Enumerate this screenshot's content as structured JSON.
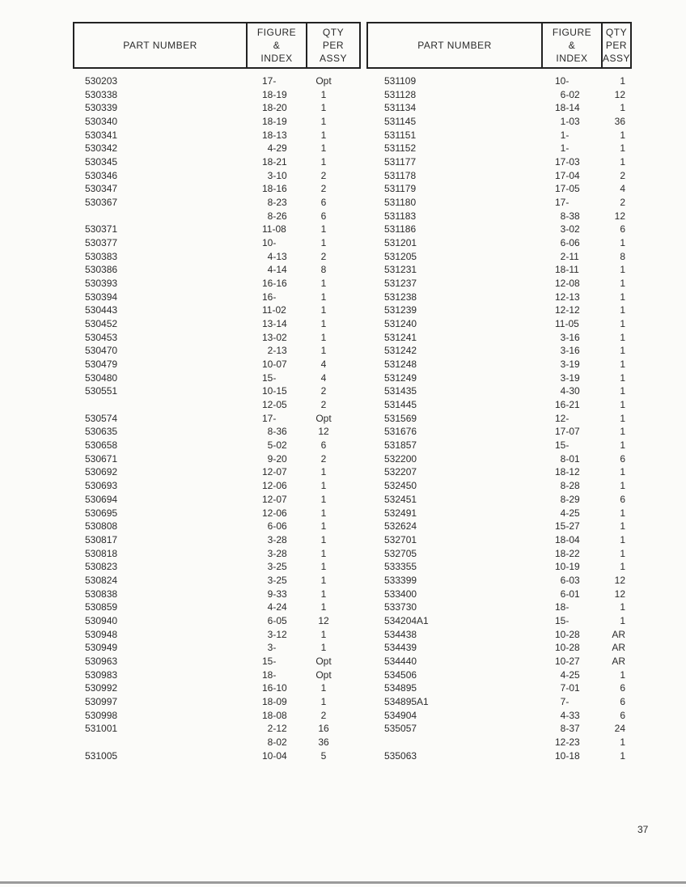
{
  "header": {
    "part_number": "PART NUMBER",
    "figure": [
      "FIGURE",
      "&",
      "INDEX"
    ],
    "qty": [
      "QTY",
      "PER",
      "ASSY"
    ]
  },
  "left_rows": [
    [
      "530203",
      "17-",
      "Opt"
    ],
    [
      "530338",
      "18-19",
      "1"
    ],
    [
      "530339",
      "18-20",
      "1"
    ],
    [
      "530340",
      "18-19",
      "1"
    ],
    [
      "530341",
      "18-13",
      "1"
    ],
    [
      "530342",
      "4-29",
      "1"
    ],
    [
      "530345",
      "18-21",
      "1"
    ],
    [
      "530346",
      "3-10",
      "2"
    ],
    [
      "530347",
      "18-16",
      "2"
    ],
    [
      "530367",
      "8-23",
      "6"
    ],
    [
      "",
      "8-26",
      "6"
    ],
    [
      "530371",
      "11-08",
      "1"
    ],
    [
      "530377",
      "10-",
      "1"
    ],
    [
      "530383",
      "4-13",
      "2"
    ],
    [
      "530386",
      "4-14",
      "8"
    ],
    [
      "530393",
      "16-16",
      "1"
    ],
    [
      "530394",
      "16-",
      "1"
    ],
    [
      "530443",
      "11-02",
      "1"
    ],
    [
      "530452",
      "13-14",
      "1"
    ],
    [
      "530453",
      "13-02",
      "1"
    ],
    [
      "530470",
      "2-13",
      "1"
    ],
    [
      "530479",
      "10-07",
      "4"
    ],
    [
      "530480",
      "15-",
      "4"
    ],
    [
      "530551",
      "10-15",
      "2"
    ],
    [
      "",
      "12-05",
      "2"
    ],
    [
      "530574",
      "17-",
      "Opt"
    ],
    [
      "530635",
      "8-36",
      "12"
    ],
    [
      "530658",
      "5-02",
      "6"
    ],
    [
      "530671",
      "9-20",
      "2"
    ],
    [
      "530692",
      "12-07",
      "1"
    ],
    [
      "530693",
      "12-06",
      "1"
    ],
    [
      "530694",
      "12-07",
      "1"
    ],
    [
      "530695",
      "12-06",
      "1"
    ],
    [
      "530808",
      "6-06",
      "1"
    ],
    [
      "530817",
      "3-28",
      "1"
    ],
    [
      "530818",
      "3-28",
      "1"
    ],
    [
      "530823",
      "3-25",
      "1"
    ],
    [
      "530824",
      "3-25",
      "1"
    ],
    [
      "530838",
      "9-33",
      "1"
    ],
    [
      "530859",
      "4-24",
      "1"
    ],
    [
      "530940",
      "6-05",
      "12"
    ],
    [
      "530948",
      "3-12",
      "1"
    ],
    [
      "530949",
      "3-",
      "1"
    ],
    [
      "530963",
      "15-",
      "Opt"
    ],
    [
      "530983",
      "18-",
      "Opt"
    ],
    [
      "530992",
      "16-10",
      "1"
    ],
    [
      "530997",
      "18-09",
      "1"
    ],
    [
      "530998",
      "18-08",
      "2"
    ],
    [
      "531001",
      "2-12",
      "16"
    ],
    [
      "",
      "8-02",
      "36"
    ],
    [
      "531005",
      "10-04",
      "5"
    ]
  ],
  "right_rows": [
    [
      "531109",
      "10-",
      "1"
    ],
    [
      "531128",
      "6-02",
      "12"
    ],
    [
      "531134",
      "18-14",
      "1"
    ],
    [
      "531145",
      "1-03",
      "36"
    ],
    [
      "531151",
      "1-",
      "1"
    ],
    [
      "531152",
      "1-",
      "1"
    ],
    [
      "531177",
      "17-03",
      "1"
    ],
    [
      "531178",
      "17-04",
      "2"
    ],
    [
      "531179",
      "17-05",
      "4"
    ],
    [
      "531180",
      "17-",
      "2"
    ],
    [
      "531183",
      "8-38",
      "12"
    ],
    [
      "531186",
      "3-02",
      "6"
    ],
    [
      "531201",
      "6-06",
      "1"
    ],
    [
      "531205",
      "2-11",
      "8"
    ],
    [
      "531231",
      "18-11",
      "1"
    ],
    [
      "531237",
      "12-08",
      "1"
    ],
    [
      "531238",
      "12-13",
      "1"
    ],
    [
      "531239",
      "12-12",
      "1"
    ],
    [
      "531240",
      "11-05",
      "1"
    ],
    [
      "531241",
      "3-16",
      "1"
    ],
    [
      "531242",
      "3-16",
      "1"
    ],
    [
      "531248",
      "3-19",
      "1"
    ],
    [
      "531249",
      "3-19",
      "1"
    ],
    [
      "531435",
      "4-30",
      "1"
    ],
    [
      "531445",
      "16-21",
      "1"
    ],
    [
      "531569",
      "12-",
      "1"
    ],
    [
      "531676",
      "17-07",
      "1"
    ],
    [
      "531857",
      "15-",
      "1"
    ],
    [
      "532200",
      "8-01",
      "6"
    ],
    [
      "532207",
      "18-12",
      "1"
    ],
    [
      "532450",
      "8-28",
      "1"
    ],
    [
      "532451",
      "8-29",
      "6"
    ],
    [
      "532491",
      "4-25",
      "1"
    ],
    [
      "532624",
      "15-27",
      "1"
    ],
    [
      "532701",
      "18-04",
      "1"
    ],
    [
      "532705",
      "18-22",
      "1"
    ],
    [
      "533355",
      "10-19",
      "1"
    ],
    [
      "533399",
      "6-03",
      "12"
    ],
    [
      "533400",
      "6-01",
      "12"
    ],
    [
      "533730",
      "18-",
      "1"
    ],
    [
      "534204A1",
      "15-",
      "1"
    ],
    [
      "534438",
      "10-28",
      "AR"
    ],
    [
      "534439",
      "10-28",
      "AR"
    ],
    [
      "534440",
      "10-27",
      "AR"
    ],
    [
      "534506",
      "4-25",
      "1"
    ],
    [
      "534895",
      "7-01",
      "6"
    ],
    [
      "534895A1",
      "7-",
      "6"
    ],
    [
      "534904",
      "4-33",
      "6"
    ],
    [
      "535057",
      "8-37",
      "24"
    ],
    [
      "",
      "12-23",
      "1"
    ],
    [
      "535063",
      "10-18",
      "1"
    ]
  ],
  "page_number": "37"
}
